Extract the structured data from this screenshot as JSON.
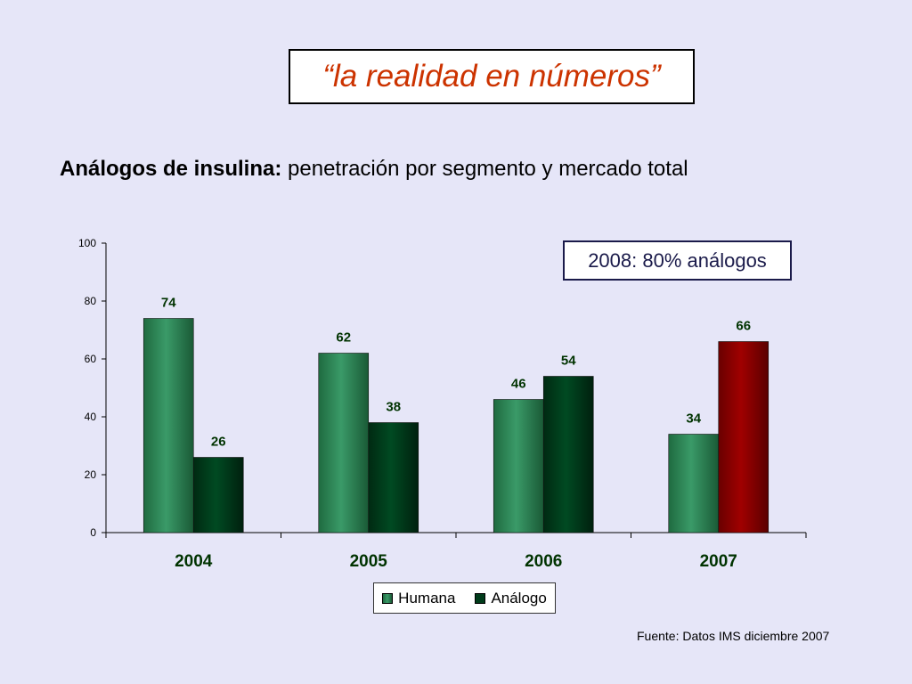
{
  "header": {
    "title": "“la realidad en números”",
    "subtitle_bold": "Análogos de insulina:",
    "subtitle_rest": " penetración por segmento y mercado total"
  },
  "annotation": "2008: 80% análogos",
  "source": "Fuente: Datos IMS diciembre 2007",
  "colors": {
    "background": "#e6e6f8",
    "title": "#cc3300",
    "humana": "#2e8b57",
    "analogo": "#003b1a",
    "analogo_highlight": "#8b0000",
    "data_label": "#003300"
  },
  "chart_data": {
    "type": "bar",
    "title": "",
    "xlabel": "",
    "ylabel": "",
    "categories": [
      "2004",
      "2005",
      "2006",
      "2007"
    ],
    "series": [
      {
        "name": "Humana",
        "values": [
          74,
          62,
          46,
          34
        ]
      },
      {
        "name": "Análogo",
        "values": [
          26,
          38,
          54,
          66
        ]
      }
    ],
    "ylim": [
      0,
      100
    ],
    "yticks": [
      "0",
      "20",
      "40",
      "60",
      "80",
      "100"
    ],
    "data_labels": true,
    "grid": false,
    "legend_position": "bottom"
  }
}
